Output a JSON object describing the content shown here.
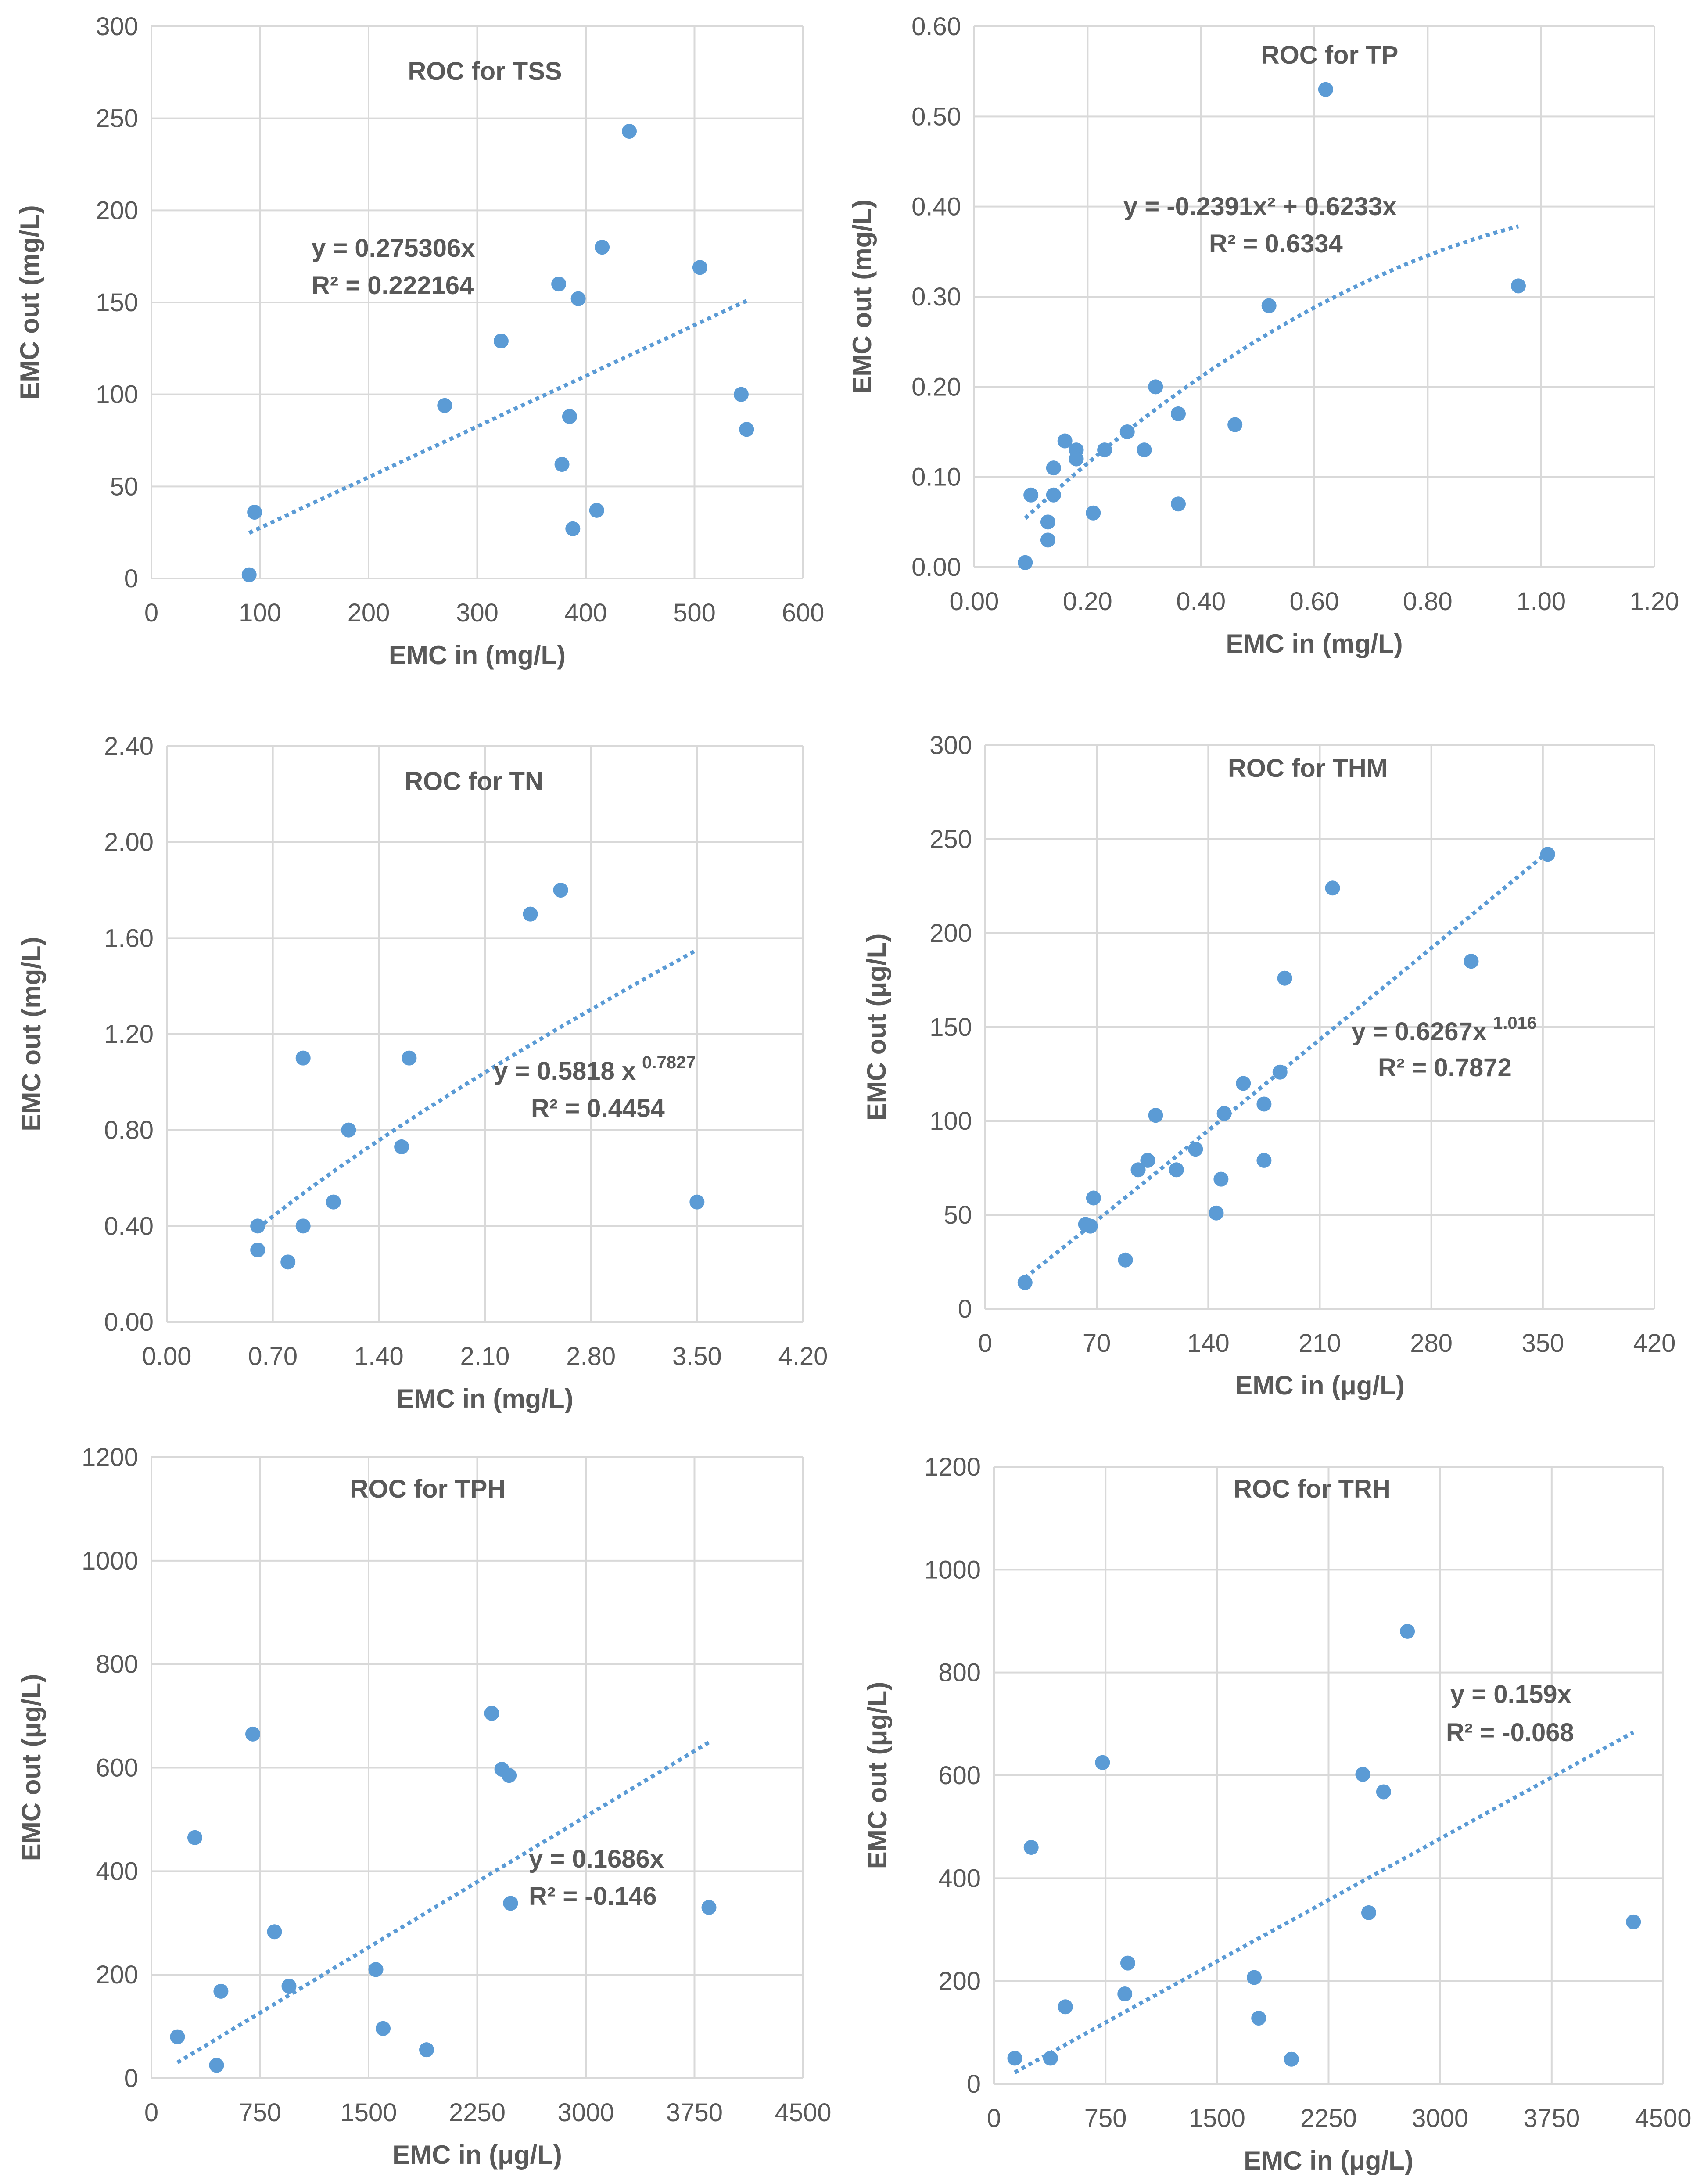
{
  "figure": {
    "background": "#ffffff",
    "marker_color": "#5b9bd5",
    "grid_color": "#d9d9d9",
    "text_color": "#595959"
  },
  "chart_data": [
    {
      "type": "scatter",
      "title": "ROC for TSS",
      "xlabel": "EMC in (mg/L)",
      "ylabel": "EMC out (mg/L)",
      "xlim": [
        0,
        600
      ],
      "ylim": [
        0,
        300
      ],
      "xticks": [
        0,
        100,
        200,
        300,
        400,
        500,
        600
      ],
      "yticks": [
        0,
        50,
        100,
        150,
        200,
        250,
        300
      ],
      "xtick_labels": [
        "0",
        "100",
        "200",
        "300",
        "400",
        "500",
        "600"
      ],
      "ytick_labels": [
        "0",
        "50",
        "100",
        "150",
        "200",
        "250",
        "300"
      ],
      "grid": true,
      "series": [
        {
          "points": [
            [
              90,
              2
            ],
            [
              95,
              36
            ],
            [
              270,
              94
            ],
            [
              322,
              129
            ],
            [
              375,
              160
            ],
            [
              378,
              62
            ],
            [
              385,
              88
            ],
            [
              388,
              27
            ],
            [
              393,
              152
            ],
            [
              410,
              37
            ],
            [
              415,
              180
            ],
            [
              440,
              243
            ],
            [
              505,
              169
            ],
            [
              543,
              100
            ],
            [
              548,
              81
            ]
          ]
        }
      ],
      "trendline": {
        "model": "linear",
        "a": 0.275306,
        "x_range": [
          90,
          548
        ]
      },
      "annotation": [
        "y = 0.275306x",
        "R² = 0.222164"
      ]
    },
    {
      "type": "scatter",
      "title": "ROC for TP",
      "xlabel": "EMC in (mg/L)",
      "ylabel": "EMC out (mg/L)",
      "xlim": [
        0,
        1.2
      ],
      "ylim": [
        0,
        0.6
      ],
      "xticks": [
        0,
        0.2,
        0.4,
        0.6,
        0.8,
        1.0,
        1.2
      ],
      "yticks": [
        0,
        0.1,
        0.2,
        0.3,
        0.4,
        0.5,
        0.6
      ],
      "xtick_labels": [
        "0.00",
        "0.20",
        "0.40",
        "0.60",
        "0.80",
        "1.00",
        "1.20"
      ],
      "ytick_labels": [
        "0.00",
        "0.10",
        "0.20",
        "0.30",
        "0.40",
        "0.50",
        "0.60"
      ],
      "grid": true,
      "series": [
        {
          "points": [
            [
              0.09,
              0.005
            ],
            [
              0.1,
              0.08
            ],
            [
              0.13,
              0.05
            ],
            [
              0.13,
              0.03
            ],
            [
              0.14,
              0.11
            ],
            [
              0.14,
              0.08
            ],
            [
              0.16,
              0.14
            ],
            [
              0.18,
              0.13
            ],
            [
              0.18,
              0.12
            ],
            [
              0.21,
              0.06
            ],
            [
              0.23,
              0.13
            ],
            [
              0.27,
              0.15
            ],
            [
              0.3,
              0.13
            ],
            [
              0.32,
              0.2
            ],
            [
              0.36,
              0.17
            ],
            [
              0.36,
              0.07
            ],
            [
              0.46,
              0.158
            ],
            [
              0.52,
              0.29
            ],
            [
              0.62,
              0.53
            ],
            [
              0.96,
              0.312
            ]
          ]
        }
      ],
      "trendline": {
        "model": "poly2",
        "a2": -0.2391,
        "a1": 0.6233,
        "x_range": [
          0.09,
          0.96
        ]
      },
      "annotation": [
        "y = -0.2391x² + 0.6233x",
        "R² = 0.6334"
      ]
    },
    {
      "type": "scatter",
      "title": "ROC for TN",
      "xlabel": "EMC in (mg/L)",
      "ylabel": "EMC out (mg/L)",
      "xlim": [
        0,
        4.2
      ],
      "ylim": [
        0,
        2.4
      ],
      "xticks": [
        0,
        0.7,
        1.4,
        2.1,
        2.8,
        3.5,
        4.2
      ],
      "yticks": [
        0,
        0.4,
        0.8,
        1.2,
        1.6,
        2.0,
        2.4
      ],
      "xtick_labels": [
        "0.00",
        "0.70",
        "1.40",
        "2.10",
        "2.80",
        "3.50",
        "4.20"
      ],
      "ytick_labels": [
        "0.00",
        "0.40",
        "0.80",
        "1.20",
        "1.60",
        "2.00",
        "2.40"
      ],
      "grid": true,
      "series": [
        {
          "points": [
            [
              0.6,
              0.4
            ],
            [
              0.6,
              0.3
            ],
            [
              0.8,
              0.25
            ],
            [
              0.9,
              1.1
            ],
            [
              0.9,
              0.4
            ],
            [
              1.1,
              0.5
            ],
            [
              1.2,
              0.8
            ],
            [
              1.55,
              0.73
            ],
            [
              1.6,
              1.1
            ],
            [
              2.4,
              1.7
            ],
            [
              2.6,
              1.8
            ],
            [
              3.5,
              0.5
            ]
          ]
        }
      ],
      "trendline": {
        "model": "power",
        "a": 0.5818,
        "b": 0.7827,
        "x_range": [
          0.6,
          3.5
        ]
      },
      "annotation": {
        "base": "y = 0.5818 x",
        "exponent": "0.7827",
        "r2": "R² = 0.4454"
      }
    },
    {
      "type": "scatter",
      "title": "ROC for THM",
      "xlabel": "EMC in (μg/L)",
      "ylabel": "EMC out (μg/L)",
      "xlim": [
        0,
        420
      ],
      "ylim": [
        0,
        300
      ],
      "xticks": [
        0,
        70,
        140,
        210,
        280,
        350,
        420
      ],
      "yticks": [
        0,
        50,
        100,
        150,
        200,
        250,
        300
      ],
      "xtick_labels": [
        "0",
        "70",
        "140",
        "210",
        "280",
        "350",
        "420"
      ],
      "ytick_labels": [
        "0",
        "50",
        "100",
        "150",
        "200",
        "250",
        "300"
      ],
      "grid": true,
      "series": [
        {
          "points": [
            [
              25,
              14
            ],
            [
              63,
              45
            ],
            [
              66,
              44
            ],
            [
              68,
              59
            ],
            [
              88,
              26
            ],
            [
              96,
              74
            ],
            [
              102,
              79
            ],
            [
              107,
              103
            ],
            [
              120,
              74
            ],
            [
              132,
              85
            ],
            [
              145,
              51
            ],
            [
              148,
              69
            ],
            [
              150,
              104
            ],
            [
              162,
              120
            ],
            [
              175,
              79
            ],
            [
              175,
              109
            ],
            [
              185,
              126
            ],
            [
              188,
              176
            ],
            [
              218,
              224
            ],
            [
              305,
              185
            ],
            [
              353,
              242
            ]
          ]
        }
      ],
      "trendline": {
        "model": "power",
        "a": 0.6267,
        "b": 1.016,
        "x_range": [
          25,
          353
        ]
      },
      "annotation": {
        "base": "y = 0.6267x",
        "exponent": "1.016",
        "r2": "R² = 0.7872"
      }
    },
    {
      "type": "scatter",
      "title": "ROC for TPH",
      "xlabel": "EMC in (μg/L)",
      "ylabel": "EMC out (μg/L)",
      "xlim": [
        0,
        4500
      ],
      "ylim": [
        0,
        1200
      ],
      "xticks": [
        0,
        750,
        1500,
        2250,
        3000,
        3750,
        4500
      ],
      "yticks": [
        0,
        200,
        400,
        600,
        800,
        1000,
        1200
      ],
      "xtick_labels": [
        "0",
        "750",
        "1500",
        "2250",
        "3000",
        "3750",
        "4500"
      ],
      "ytick_labels": [
        "0",
        "200",
        "400",
        "600",
        "800",
        "1000",
        "1200"
      ],
      "grid": true,
      "series": [
        {
          "points": [
            [
              180,
              80
            ],
            [
              300,
              465
            ],
            [
              450,
              25
            ],
            [
              480,
              168
            ],
            [
              700,
              665
            ],
            [
              850,
              283
            ],
            [
              950,
              178
            ],
            [
              1550,
              210
            ],
            [
              1600,
              96
            ],
            [
              1900,
              55
            ],
            [
              2350,
              705
            ],
            [
              2420,
              597
            ],
            [
              2470,
              585
            ],
            [
              2480,
              338
            ],
            [
              3850,
              330
            ]
          ]
        }
      ],
      "trendline": {
        "model": "linear",
        "a": 0.1686,
        "x_range": [
          180,
          3850
        ]
      },
      "annotation": [
        "y = 0.1686x",
        "R² = -0.146"
      ]
    },
    {
      "type": "scatter",
      "title": "ROC for TRH",
      "xlabel": "EMC in (μg/L)",
      "ylabel": "EMC out (μg/L)",
      "xlim": [
        0,
        4500
      ],
      "ylim": [
        0,
        1200
      ],
      "xticks": [
        0,
        750,
        1500,
        2250,
        3000,
        3750,
        4500
      ],
      "yticks": [
        0,
        200,
        400,
        600,
        800,
        1000,
        1200
      ],
      "xtick_labels": [
        "0",
        "750",
        "1500",
        "2250",
        "3000",
        "3750",
        "4500"
      ],
      "ytick_labels": [
        "0",
        "200",
        "400",
        "600",
        "800",
        "1000",
        "1200"
      ],
      "grid": true,
      "series": [
        {
          "points": [
            [
              140,
              50
            ],
            [
              250,
              460
            ],
            [
              380,
              50
            ],
            [
              480,
              150
            ],
            [
              730,
              625
            ],
            [
              880,
              175
            ],
            [
              900,
              235
            ],
            [
              1750,
              207
            ],
            [
              1780,
              128
            ],
            [
              2000,
              48
            ],
            [
              2480,
              602
            ],
            [
              2520,
              333
            ],
            [
              2620,
              568
            ],
            [
              2780,
              880
            ],
            [
              4300,
              315
            ]
          ]
        }
      ],
      "trendline": {
        "model": "linear",
        "a": 0.159,
        "x_range": [
          140,
          4300
        ]
      },
      "annotation": [
        "y = 0.159x",
        "R² = -0.068"
      ]
    }
  ]
}
